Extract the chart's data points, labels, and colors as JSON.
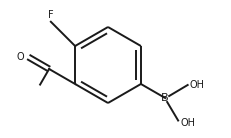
{
  "background_color": "#ffffff",
  "line_color": "#1a1a1a",
  "line_width": 1.4,
  "font_size": 7.0,
  "font_family": "DejaVu Sans",
  "label_F": "F",
  "label_B": "B",
  "label_OH": "OH",
  "label_O": "O"
}
